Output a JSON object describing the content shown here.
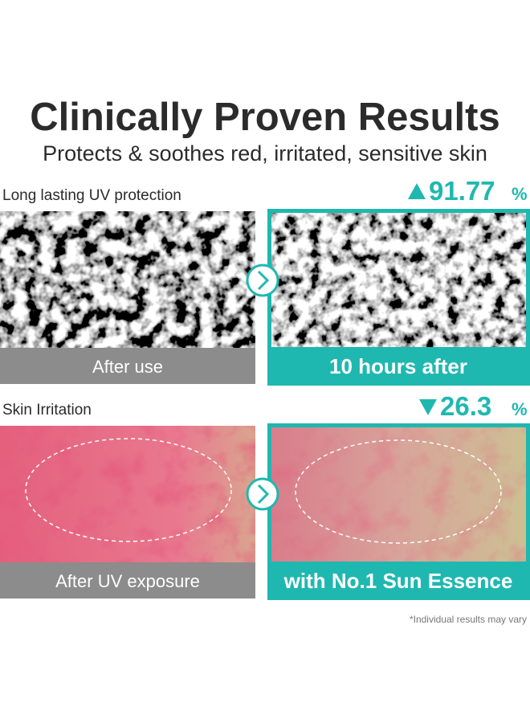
{
  "header": {
    "title": "Clinically Proven Results",
    "subtitle": "Protects & soothes red, irritated, sensitive skin"
  },
  "sections": [
    {
      "label": "Long lasting UV protection",
      "stat": "91.77",
      "stat_unit": "%",
      "before_caption": "After use",
      "after_caption": "10 hours after"
    },
    {
      "label": "Skin Irritation",
      "stat": "26.3",
      "stat_unit": "%",
      "before_caption": "After UV exposure",
      "after_caption": "with No.1 Sun Essence"
    }
  ],
  "footnote": "*Individual results may vary"
}
